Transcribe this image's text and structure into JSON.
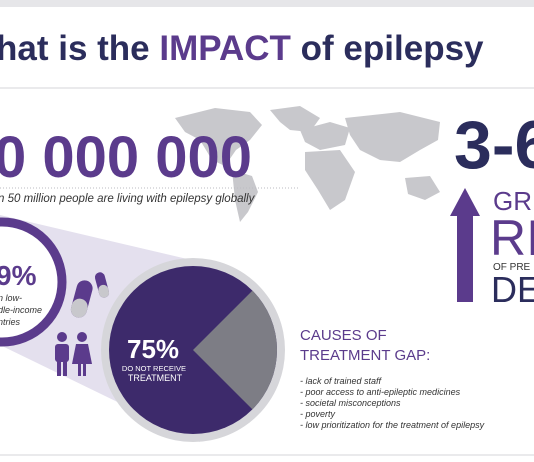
{
  "header": {
    "title_start": "hat is the",
    "title_highlight": "IMPACT",
    "title_end": "of epilepsy"
  },
  "global": {
    "number": "0 000 000",
    "caption": "n 50 million people are living with epilepsy globally"
  },
  "income": {
    "percent": "9%",
    "lines": [
      "n low-",
      "dle-income",
      "ntries"
    ]
  },
  "treatment": {
    "percent": "75%",
    "lines": [
      "DO NOT RECEIVE",
      "TREATMENT"
    ]
  },
  "causes": {
    "title": [
      "CAUSES OF",
      "TREATMENT GAP:"
    ],
    "items": [
      "- lack of trained staff",
      "- poor access to anti-epileptic medicines",
      "- societal misconceptions",
      "- poverty",
      "- low prioritization for the treatment of epilepsy"
    ]
  },
  "risk": {
    "number": "3-6",
    "lines": [
      "GRE",
      "RI",
      "OF PRE",
      "DE"
    ]
  }
}
